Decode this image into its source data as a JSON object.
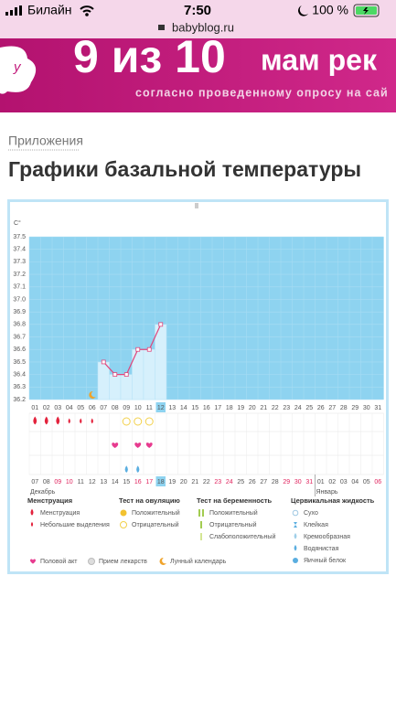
{
  "status_bar": {
    "carrier": "Билайн",
    "time": "7:50",
    "battery": "100 %",
    "url": "babyblog.ru"
  },
  "banner": {
    "headline_number": "9 из 10",
    "headline_text": "мам рек",
    "subtitle": "согласно проведенному опросу на сай"
  },
  "breadcrumb": "Приложения",
  "title": "Графики базальной температуры",
  "chart_data": {
    "type": "line",
    "y_unit": "C°",
    "ylim": [
      36.2,
      37.5
    ],
    "yticks": [
      36.2,
      36.3,
      36.4,
      36.5,
      36.6,
      36.7,
      36.8,
      36.9,
      {
        "value": 37,
        "label": "37.0"
      },
      37.1,
      37.2,
      37.3,
      37.4,
      37.5
    ],
    "categories": [
      "01",
      "02",
      "03",
      "04",
      "05",
      "06",
      "07",
      "08",
      "09",
      "10",
      "11",
      "12",
      "13",
      "14",
      "15",
      "16",
      "17",
      "18",
      "19",
      "20",
      "21",
      "22",
      "23",
      "24",
      "25",
      "26",
      "27",
      "28",
      "29",
      "30",
      "31"
    ],
    "values": [
      null,
      null,
      null,
      null,
      null,
      null,
      36.5,
      36.4,
      36.4,
      36.6,
      36.6,
      36.8,
      null,
      null,
      null,
      null,
      null,
      null,
      null,
      null,
      null,
      null,
      null,
      null,
      null,
      null,
      null,
      null,
      null,
      null,
      null
    ],
    "highlight_day": "12",
    "line_color": "#e0457b",
    "plot_color": "#8ed3f0",
    "bar_color": "#d6f0fc",
    "dates": [
      "07",
      "08",
      "09",
      "10",
      "11",
      "12",
      "13",
      "14",
      "15",
      "16",
      "17",
      "18",
      "19",
      "20",
      "21",
      "22",
      "23",
      "24",
      "25",
      "26",
      "27",
      "28",
      "29",
      "30",
      "31",
      "01",
      "02",
      "03",
      "04",
      "05",
      "06"
    ],
    "weekend": [
      false,
      false,
      true,
      true,
      false,
      false,
      false,
      false,
      false,
      true,
      true,
      false,
      false,
      false,
      false,
      false,
      true,
      true,
      false,
      false,
      false,
      false,
      true,
      true,
      true,
      false,
      false,
      false,
      false,
      false,
      true
    ],
    "weekend_color": "#e0245e",
    "months": [
      "Декабрь",
      "Январь"
    ],
    "symbols": {
      "menstruation_heavy": [
        "01",
        "02",
        "03"
      ],
      "menstruation_light": [
        "04",
        "05",
        "06"
      ],
      "ovulation_negative": [
        "09",
        "10",
        "11"
      ],
      "intercourse": [
        "08",
        "10",
        "11"
      ],
      "cervical_watery": [
        "09",
        "10"
      ],
      "moon": [
        "06"
      ]
    }
  },
  "legend": {
    "groups": [
      {
        "title": "Менструация",
        "items": [
          "Менструация",
          "Небольшие выделения"
        ]
      },
      {
        "title": "Тест на овуляцию",
        "items": [
          "Положительный",
          "Отрицательный"
        ]
      },
      {
        "title": "Тест на беременность",
        "items": [
          "Положительный",
          "Отрицательный",
          "Слабоположительный"
        ]
      },
      {
        "title": "Цервикальная жидкость",
        "items": [
          "Сухо",
          "Клейкая",
          "Кремообразная",
          "Водянистая",
          "Яичный белок"
        ]
      }
    ],
    "extras": [
      "Половой акт",
      "Прием лекарств",
      "Лунный календарь"
    ]
  }
}
